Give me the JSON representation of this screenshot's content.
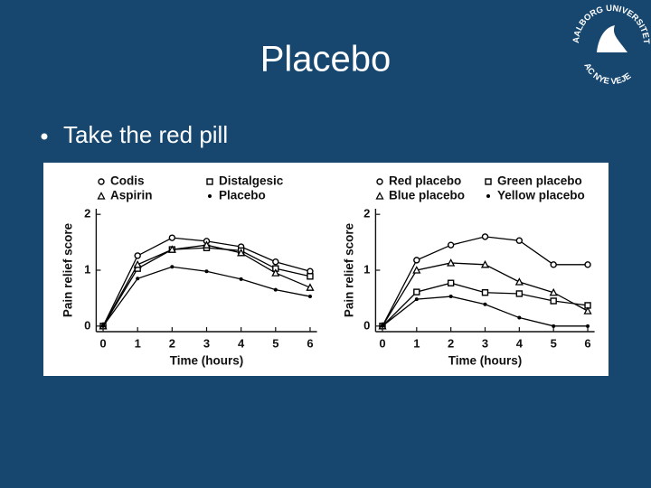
{
  "slide": {
    "title": "Placebo",
    "bullet": "Take the red pill"
  },
  "logo": {
    "top_text": "AALBORG UNIVERSITET",
    "bottom_text": "AC NYE VEJE"
  },
  "chart_data": [
    {
      "type": "line",
      "x_label": "Time (hours)",
      "y_label": "Pain relief score",
      "x": [
        0,
        1,
        2,
        3,
        4,
        5,
        6
      ],
      "xlim": [
        -0.2,
        6.2
      ],
      "xticks": [
        0,
        1,
        2,
        3,
        4,
        5,
        6
      ],
      "ylim": [
        -0.1,
        2.1
      ],
      "yticks": [
        0,
        1,
        2
      ],
      "legend": "top",
      "series": [
        {
          "name": "Codis",
          "color": "#000000",
          "marker": "circle",
          "values": [
            0,
            1.26,
            1.58,
            1.52,
            1.42,
            1.15,
            0.98
          ]
        },
        {
          "name": "Distalgesic",
          "color": "#000000",
          "marker": "square",
          "values": [
            0,
            1.03,
            1.37,
            1.4,
            1.35,
            1.03,
            0.89
          ]
        },
        {
          "name": "Aspirin",
          "color": "#000000",
          "marker": "triangle",
          "values": [
            0,
            1.1,
            1.37,
            1.45,
            1.31,
            0.95,
            0.69
          ]
        },
        {
          "name": "Placebo",
          "color": "#000000",
          "marker": "dot",
          "values": [
            0,
            0.85,
            1.06,
            0.98,
            0.84,
            0.65,
            0.53
          ]
        }
      ]
    },
    {
      "type": "line",
      "x_label": "Time (hours)",
      "y_label": "Pain relief score",
      "x": [
        0,
        1,
        2,
        3,
        4,
        5,
        6
      ],
      "xlim": [
        -0.2,
        6.2
      ],
      "xticks": [
        0,
        1,
        2,
        3,
        4,
        5,
        6
      ],
      "ylim": [
        -0.1,
        2.1
      ],
      "yticks": [
        0,
        1,
        2
      ],
      "legend": "top",
      "series": [
        {
          "name": "Red placebo",
          "color": "#000000",
          "marker": "circle",
          "values": [
            0,
            1.18,
            1.45,
            1.6,
            1.53,
            1.1,
            1.1
          ]
        },
        {
          "name": "Green placebo",
          "color": "#000000",
          "marker": "square",
          "values": [
            0,
            0.61,
            0.77,
            0.6,
            0.58,
            0.45,
            0.37
          ]
        },
        {
          "name": "Blue placebo",
          "color": "#000000",
          "marker": "triangle",
          "values": [
            0,
            1.0,
            1.13,
            1.1,
            0.79,
            0.6,
            0.27
          ]
        },
        {
          "name": "Yellow placebo",
          "color": "#000000",
          "marker": "dot",
          "values": [
            0,
            0.48,
            0.53,
            0.39,
            0.15,
            0,
            0
          ]
        }
      ]
    }
  ]
}
